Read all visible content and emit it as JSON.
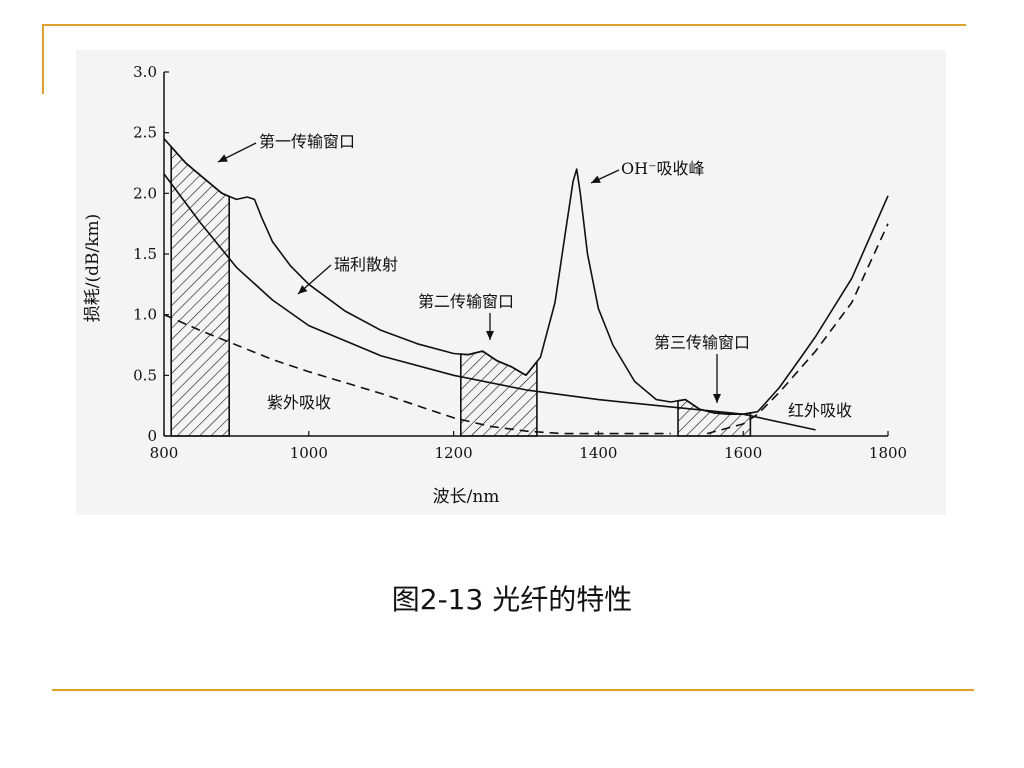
{
  "slide": {
    "caption": "图2-13 光纤的特性",
    "accent_color": "#e0a030"
  },
  "chart_data": {
    "type": "line",
    "title": "",
    "xlabel": "波长/nm",
    "ylabel": "损耗/(dB/km)",
    "xlim": [
      800,
      1800
    ],
    "ylim": [
      0,
      3.0
    ],
    "x_ticks": [
      800,
      1000,
      1200,
      1400,
      1600,
      1800
    ],
    "x_tick_labels": [
      "800",
      "1000",
      "1200",
      "1400",
      "1600",
      "1800"
    ],
    "y_ticks": [
      0,
      0.5,
      1.0,
      1.5,
      2.0,
      2.5,
      3.0
    ],
    "y_tick_labels": [
      "0",
      "0.5",
      "1.0",
      "1.5",
      "2.0",
      "2.5",
      "3.0"
    ],
    "grid": false,
    "series": [
      {
        "key": "total",
        "style": "solid",
        "x": [
          800,
          830,
          860,
          880,
          900,
          915,
          925,
          935,
          950,
          975,
          1000,
          1050,
          1100,
          1150,
          1200,
          1220,
          1240,
          1260,
          1280,
          1300,
          1320,
          1340,
          1355,
          1365,
          1370,
          1375,
          1385,
          1400,
          1420,
          1450,
          1480,
          1500,
          1520,
          1540,
          1560,
          1580,
          1600,
          1620,
          1650,
          1680,
          1700,
          1750,
          1800
        ],
        "y": [
          2.45,
          2.25,
          2.1,
          2.0,
          1.95,
          1.97,
          1.95,
          1.8,
          1.6,
          1.4,
          1.25,
          1.03,
          0.87,
          0.76,
          0.68,
          0.67,
          0.7,
          0.62,
          0.57,
          0.5,
          0.65,
          1.1,
          1.7,
          2.1,
          2.2,
          2.0,
          1.5,
          1.05,
          0.75,
          0.45,
          0.3,
          0.28,
          0.3,
          0.22,
          0.19,
          0.18,
          0.18,
          0.2,
          0.4,
          0.65,
          0.82,
          1.3,
          1.98
        ]
      },
      {
        "key": "rayleigh",
        "name": "瑞利散射",
        "style": "solid",
        "x": [
          800,
          850,
          900,
          950,
          1000,
          1100,
          1200,
          1300,
          1400,
          1500,
          1600,
          1700
        ],
        "y": [
          2.16,
          1.76,
          1.39,
          1.12,
          0.91,
          0.66,
          0.5,
          0.38,
          0.3,
          0.24,
          0.18,
          0.05
        ]
      },
      {
        "key": "uv",
        "name": "紫外吸收",
        "style": "dashed",
        "x": [
          800,
          850,
          900,
          950,
          1000,
          1050,
          1100,
          1150,
          1200,
          1250,
          1300,
          1350,
          1400,
          1450,
          1500
        ],
        "y": [
          1.0,
          0.87,
          0.75,
          0.63,
          0.53,
          0.44,
          0.35,
          0.25,
          0.15,
          0.08,
          0.04,
          0.02,
          0.02,
          0.02,
          0.02
        ]
      },
      {
        "key": "ir",
        "name": "红外吸收",
        "style": "dashed",
        "x": [
          1550,
          1600,
          1620,
          1650,
          1700,
          1750,
          1800
        ],
        "y": [
          0.02,
          0.1,
          0.18,
          0.36,
          0.7,
          1.1,
          1.75
        ]
      }
    ],
    "windows": [
      {
        "name": "第一传输窗口",
        "x_range": [
          810,
          890
        ],
        "curve": "total"
      },
      {
        "name": "第二传输窗口",
        "x_range": [
          1210,
          1315
        ],
        "curve": "total"
      },
      {
        "name": "第三传输窗口",
        "x_range": [
          1510,
          1610
        ],
        "curve": "total"
      }
    ],
    "annotations": [
      {
        "key": "w1",
        "text": "第一传输窗口"
      },
      {
        "key": "rayleigh",
        "text": "瑞利散射"
      },
      {
        "key": "oh",
        "text": "OH⁻吸收峰"
      },
      {
        "key": "w2",
        "text": "第二传输窗口"
      },
      {
        "key": "w3",
        "text": "第三传输窗口"
      },
      {
        "key": "uv",
        "text": "紫外吸收"
      },
      {
        "key": "ir",
        "text": "红外吸收"
      }
    ]
  }
}
